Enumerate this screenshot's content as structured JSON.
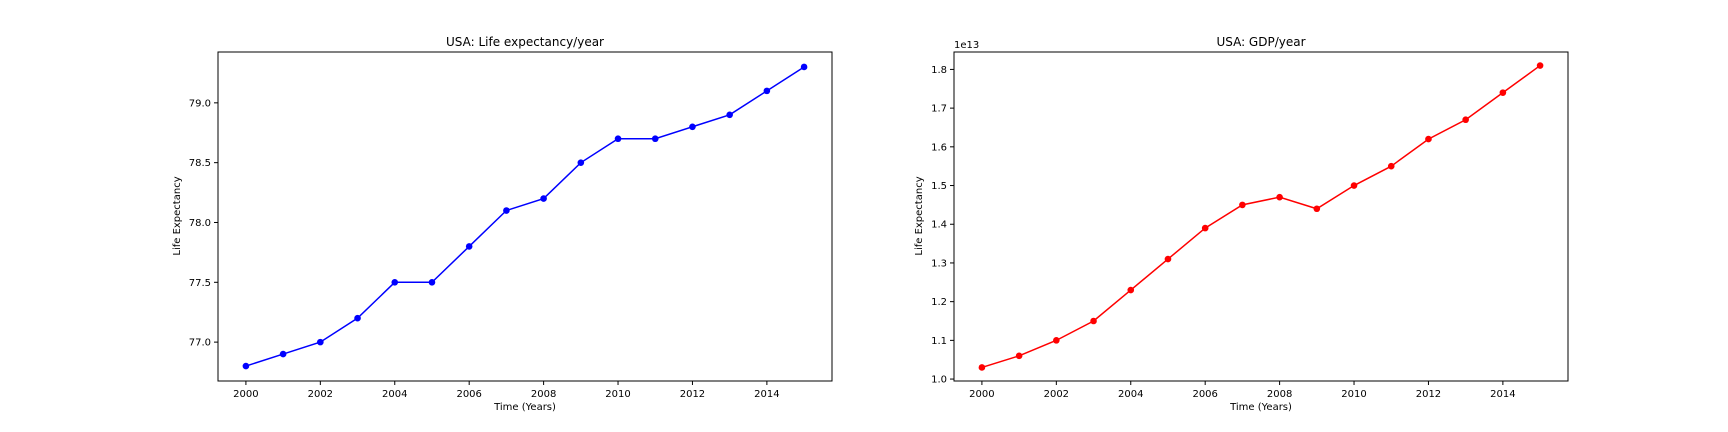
{
  "chart_data": [
    {
      "type": "line",
      "title": "USA: Life expectancy/year",
      "xlabel": "Time (Years)",
      "ylabel": "Life Expectancy",
      "x": [
        2000,
        2001,
        2002,
        2003,
        2004,
        2005,
        2006,
        2007,
        2008,
        2009,
        2010,
        2011,
        2012,
        2013,
        2014,
        2015
      ],
      "series": [
        {
          "values": [
            76.8,
            76.9,
            77.0,
            77.2,
            77.5,
            77.5,
            77.8,
            78.1,
            78.2,
            78.5,
            78.7,
            78.7,
            78.8,
            78.9,
            79.1,
            79.3
          ],
          "color": "#0000ff",
          "marker": "circle"
        }
      ],
      "xlim": [
        1999.25,
        2015.75
      ],
      "ylim": [
        76.675,
        79.425
      ],
      "xticks": [
        2000,
        2002,
        2004,
        2006,
        2008,
        2010,
        2012,
        2014
      ],
      "xtick_labels": [
        "2000",
        "2002",
        "2004",
        "2006",
        "2008",
        "2010",
        "2012",
        "2014"
      ],
      "yticks": [
        77.0,
        77.5,
        78.0,
        78.5,
        79.0
      ],
      "ytick_labels": [
        "77.0",
        "77.5",
        "78.0",
        "78.5",
        "79.0"
      ],
      "offset_text": "",
      "grid": false,
      "legend": "none"
    },
    {
      "type": "line",
      "title": "USA: GDP/year",
      "xlabel": "Time (Years)",
      "ylabel": "Life Expectancy",
      "x": [
        2000,
        2001,
        2002,
        2003,
        2004,
        2005,
        2006,
        2007,
        2008,
        2009,
        2010,
        2011,
        2012,
        2013,
        2014,
        2015
      ],
      "series": [
        {
          "values": [
            10300000000000.0,
            10600000000000.0,
            11000000000000.0,
            11500000000000.0,
            12300000000000.0,
            13100000000000.0,
            13900000000000.0,
            14500000000000.0,
            14700000000000.0,
            14400000000000.0,
            15000000000000.0,
            15500000000000.0,
            16200000000000.0,
            16700000000000.0,
            17400000000000.0,
            18100000000000.0
          ],
          "color": "#ff0000",
          "marker": "circle"
        }
      ],
      "xlim": [
        1999.25,
        2015.75
      ],
      "ylim": [
        9950000000000.0,
        18450000000000.0
      ],
      "xticks": [
        2000,
        2002,
        2004,
        2006,
        2008,
        2010,
        2012,
        2014
      ],
      "xtick_labels": [
        "2000",
        "2002",
        "2004",
        "2006",
        "2008",
        "2010",
        "2012",
        "2014"
      ],
      "yticks": [
        10000000000000.0,
        11000000000000.0,
        12000000000000.0,
        13000000000000.0,
        14000000000000.0,
        15000000000000.0,
        16000000000000.0,
        17000000000000.0,
        18000000000000.0
      ],
      "ytick_labels": [
        "1.0",
        "1.1",
        "1.2",
        "1.3",
        "1.4",
        "1.5",
        "1.6",
        "1.7",
        "1.8"
      ],
      "offset_text": "1e13",
      "grid": false,
      "legend": "none"
    }
  ]
}
